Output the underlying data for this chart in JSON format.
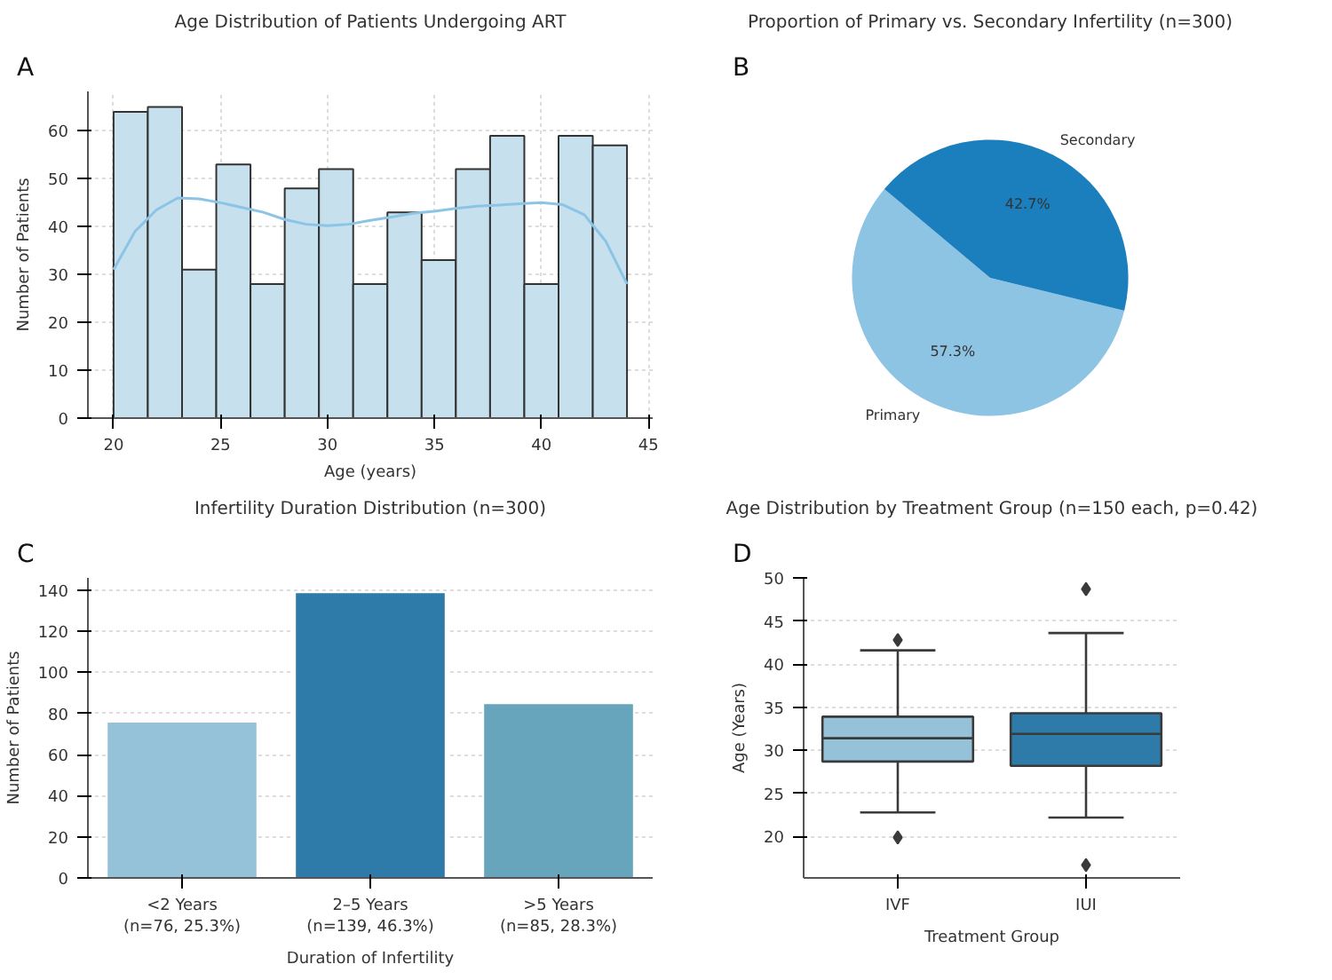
{
  "chart_data": [
    {
      "type": "histogram",
      "title": "Age Distribution of Patients Undergoing ART",
      "xlabel": "Age (years)",
      "ylabel": "Number of Patients",
      "annotations": [
        "A"
      ],
      "bins": [
        20,
        21.6,
        23.2,
        24.8,
        26.4,
        28,
        29.6,
        31.2,
        32.8,
        34.4,
        36,
        37.6,
        39.2,
        40.8,
        42.4,
        44
      ],
      "values": [
        64,
        65,
        31,
        53,
        28,
        48,
        52,
        28,
        43,
        33,
        52,
        59,
        28,
        59,
        57
      ],
      "color": "#c6e0ee",
      "series": [
        {
          "type": "line",
          "color": "#8cc4e6",
          "x": [
            20,
            21,
            22,
            23,
            24,
            25,
            26,
            27,
            28,
            29,
            30,
            31,
            32,
            33,
            34,
            35,
            36,
            37,
            38,
            39,
            40,
            41,
            42,
            43,
            44
          ],
          "values": [
            31,
            39,
            43.5,
            46,
            45.8,
            45,
            44,
            43,
            41.5,
            40.5,
            40.2,
            40.5,
            41.3,
            42,
            42.8,
            43.2,
            43.8,
            44.3,
            44.5,
            44.8,
            45,
            44.6,
            42.5,
            37,
            28
          ]
        }
      ],
      "xlim": [
        18.8,
        45.2
      ],
      "xticks": [
        20,
        25,
        30,
        35,
        40,
        45
      ],
      "ylim": [
        0,
        68.25
      ],
      "yticks": [
        0,
        10,
        20,
        30,
        40,
        50,
        60
      ],
      "grid": true
    },
    {
      "type": "pie",
      "title": "Proportion of Primary vs. Secondary Infertility (n=300)",
      "annotations": [
        "B"
      ],
      "categories": [
        "Primary",
        "Secondary"
      ],
      "values": [
        57.3,
        42.7
      ],
      "colors": [
        "#8dc3e3",
        "#1a7fbc"
      ],
      "value_labels": [
        "57.3%",
        "42.7%"
      ]
    },
    {
      "type": "bar",
      "title": "Infertility Duration Distribution (n=300)",
      "xlabel": "Duration of Infertility",
      "ylabel": "Number of Patients",
      "annotations": [
        "C"
      ],
      "categories": [
        "<2 Years\n(n=76, 25.3%)",
        "2–5 Years\n(n=139, 46.3%)",
        ">5 Years\n(n=85, 28.3%)"
      ],
      "values": [
        76,
        139,
        85
      ],
      "colors": [
        "#96c2d9",
        "#2e7aa8",
        "#66a5bb"
      ],
      "ylim": [
        0,
        146
      ],
      "yticks": [
        0,
        20,
        40,
        60,
        80,
        100,
        120,
        140
      ],
      "grid": "y"
    },
    {
      "type": "box",
      "title": "Age Distribution by Treatment Group (n=150 each, p=0.42)",
      "xlabel": "Treatment Group",
      "ylabel": "Age (Years)",
      "annotations": [
        "D"
      ],
      "categories": [
        "IVF",
        "IUI"
      ],
      "colors": [
        "#96c2d9",
        "#2e7aa8"
      ],
      "boxes": [
        {
          "low": 22.8,
          "q1": 28.7,
          "median": 31.4,
          "q3": 33.9,
          "high": 41.6,
          "outliers": [
            42.8,
            19.9
          ]
        },
        {
          "low": 22.2,
          "q1": 28.2,
          "median": 31.9,
          "q3": 34.3,
          "high": 43.6,
          "outliers": [
            48.7,
            16.7
          ]
        }
      ],
      "ylim": [
        15.2,
        50
      ],
      "yticks": [
        20,
        25,
        30,
        35,
        40,
        45,
        50
      ],
      "grid": "y"
    }
  ]
}
